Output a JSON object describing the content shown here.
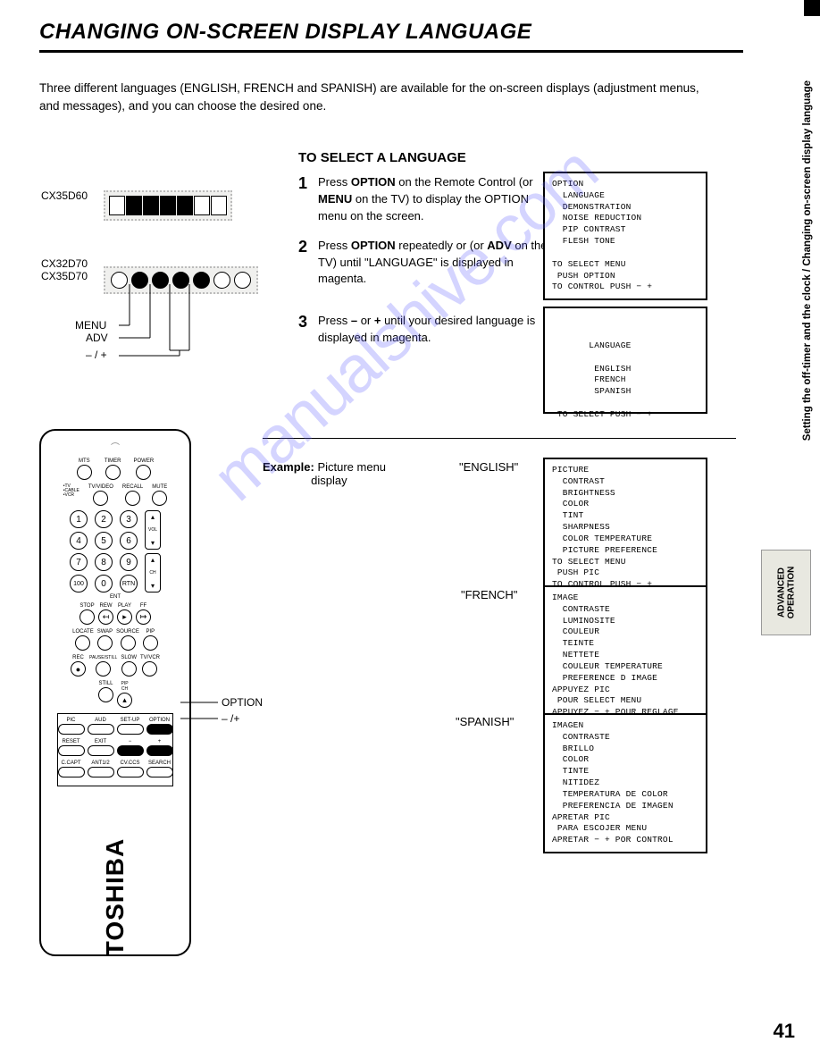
{
  "title": "CHANGING ON-SCREEN DISPLAY LANGUAGE",
  "intro": "Three different languages (ENGLISH, FRENCH and SPANISH) are available for the on-screen displays (adjustment menus, and messages), and you can choose the desired one.",
  "section_header": "TO SELECT A LANGUAGE",
  "steps": [
    {
      "num": "1",
      "html": "Press <b>OPTION</b> on the Remote Control (or <b>MENU</b> on the TV) to display the OPTION menu on the screen."
    },
    {
      "num": "2",
      "html": "Press <b>OPTION</b> repeatedly or (or <b>ADV</b> on the TV) until \"LANGUAGE\" is displayed in magenta."
    },
    {
      "num": "3",
      "html": "Press <b>–</b> or <b>+</b> until your desired language is displayed in magenta."
    }
  ],
  "menu1": "OPTION\n  LANGUAGE\n  DEMONSTRATION\n  NOISE REDUCTION\n  PIP CONTRAST\n  FLESH TONE\n\nTO SELECT MENU\n PUSH OPTION\nTO CONTROL PUSH − +",
  "menu2": "       LANGUAGE\n\n        ENGLISH\n        FRENCH\n        SPANISH\n\n TO SELECT PUSH − +",
  "example_label": "Example:",
  "example_text": "Picture menu display",
  "lang_en": "\"ENGLISH\"",
  "lang_fr": "\"FRENCH\"",
  "lang_es": "\"SPANISH\"",
  "menu3": "PICTURE\n  CONTRAST\n  BRIGHTNESS\n  COLOR\n  TINT\n  SHARPNESS\n  COLOR TEMPERATURE\n  PICTURE PREFERENCE\nTO SELECT MENU\n PUSH PIC\nTO CONTROL PUSH − +",
  "menu4": "IMAGE\n  CONTRASTE\n  LUMINOSITE\n  COULEUR\n  TEINTE\n  NETTETE\n  COULEUR TEMPERATURE\n  PREFERENCE D IMAGE\nAPPUYEZ PIC\n POUR SELECT MENU\nAPPUYEZ − + POUR REGLAGE",
  "menu5": "IMAGEN\n  CONTRASTE\n  BRILLO\n  COLOR\n  TINTE\n  NITIDEZ\n  TEMPERATURA DE COLOR\n  PREFERENCIA DE IMAGEN\nAPRETAR PIC\n PARA ESCOJER MENU\nAPRETAR − + POR CONTROL",
  "models": {
    "m60": "CX35D60",
    "m70a": "CX32D70",
    "m70b": "CX35D70"
  },
  "tv_callouts": {
    "menu": "MENU",
    "adv": "ADV",
    "pm": "– / +"
  },
  "remote_callouts": {
    "option": "OPTION",
    "pm": "– /+"
  },
  "brand": "TOSHIBA",
  "page_number": "41",
  "side_text": "Setting the off-timer and the clock / Changing on-screen display language",
  "side_tab": "ADVANCED\nOPERATION",
  "watermark": "manualshive.com",
  "remote_top_labels": [
    "MTS",
    "TIMER",
    "POWER"
  ],
  "remote_mid_labels": [
    "TV/VIDEO",
    "RECALL",
    "MUTE"
  ],
  "remote_switch": "TV\nCABLE\nVCR",
  "remote_nums": [
    "1",
    "2",
    "3",
    "4",
    "5",
    "6",
    "7",
    "8",
    "9",
    "100",
    "0",
    "RTN"
  ],
  "remote_ent": "ENT",
  "remote_vol": "VOL",
  "remote_ch": "CH",
  "remote_play_row": [
    "STOP",
    "REW",
    "PLAY",
    "FF"
  ],
  "remote_source_row": [
    "LOCATE",
    "SWAP",
    "SOURCE",
    "PIP"
  ],
  "remote_rec_row": [
    "REC",
    "PAUSE/STILL",
    "SLOW",
    "TV/VCR"
  ],
  "remote_still_row": [
    "STILL",
    "PIP CH"
  ],
  "remote_bottom_r1": [
    "PIC",
    "AUD",
    "SET-UP",
    "OPTION"
  ],
  "remote_bottom_r2": [
    "RESET",
    "EXIT",
    "−",
    "+"
  ],
  "remote_bottom_r3": [
    "C.CAPT",
    "ANT1/2",
    "CV.CCS",
    "SEARCH"
  ]
}
